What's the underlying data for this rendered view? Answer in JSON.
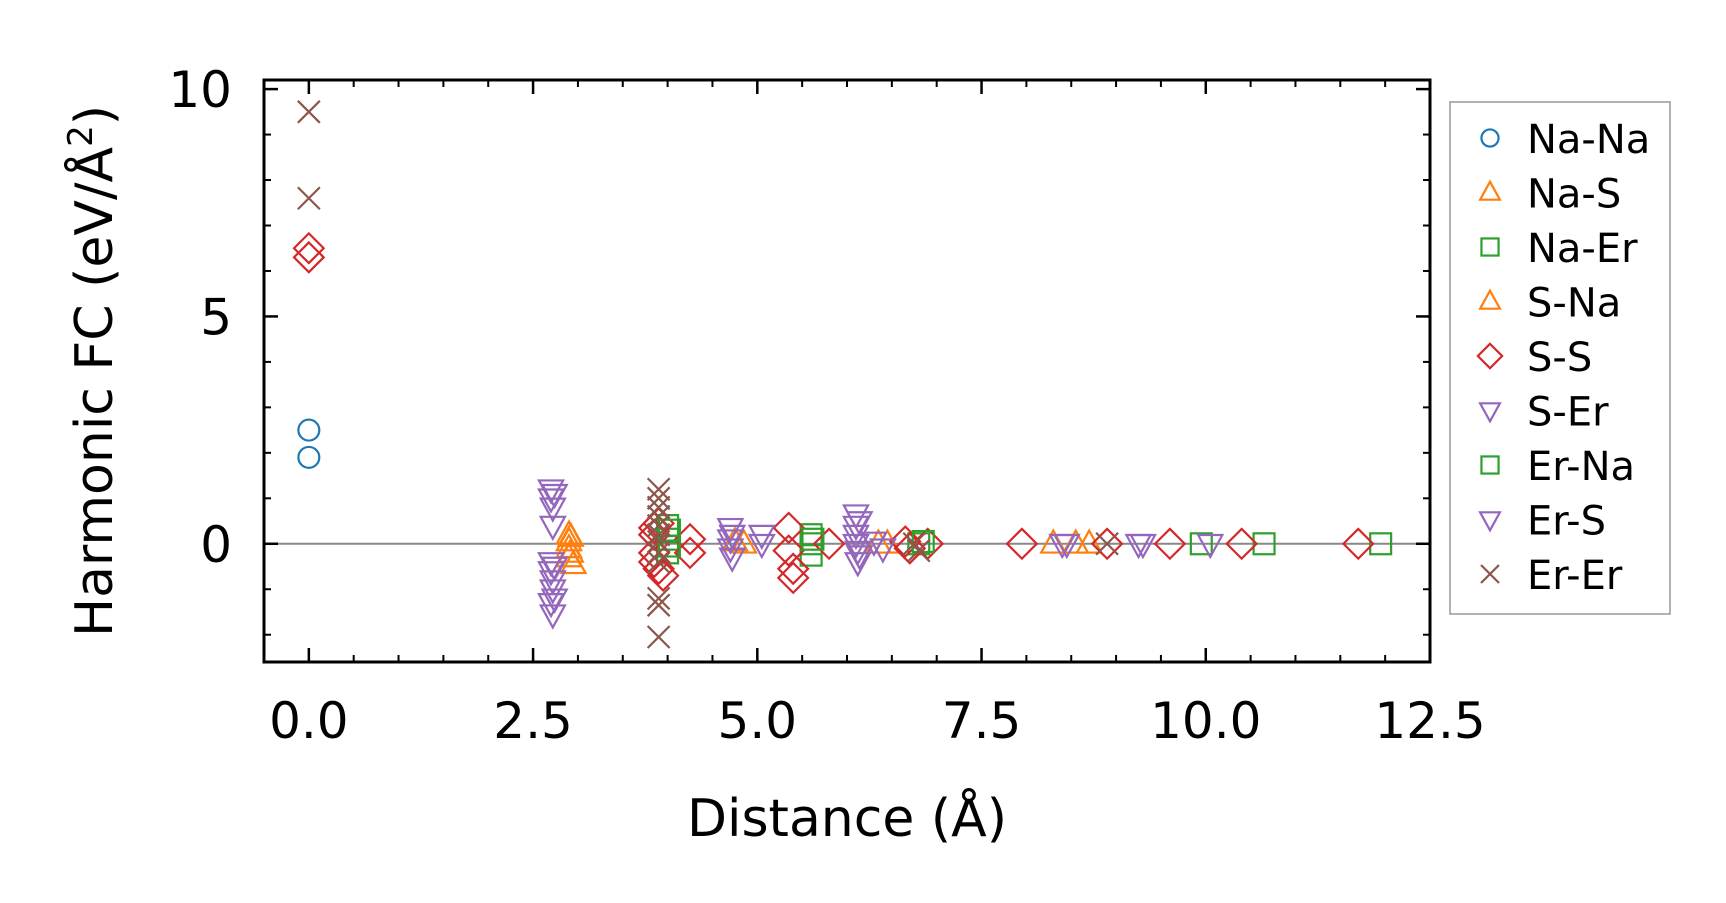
{
  "chart_data": {
    "type": "scatter",
    "title": "",
    "xlabel": "Distance (Å)",
    "ylabel": "Harmonic FC (eV/Å²)",
    "ylabel_parts": {
      "main": "Harmonic FC (eV/Å",
      "sup": "2",
      "end": ")"
    },
    "xlim": [
      -0.5,
      12.5
    ],
    "ylim": [
      -2.6,
      10.2
    ],
    "xticks": [
      0.0,
      2.5,
      5.0,
      7.5,
      10.0,
      12.5
    ],
    "xtick_labels": [
      "0.0",
      "2.5",
      "5.0",
      "7.5",
      "10.0",
      "12.5"
    ],
    "yticks": [
      0,
      5,
      10
    ],
    "ytick_labels": [
      "0",
      "5",
      "10"
    ],
    "zero_line": true,
    "legend_position": "right",
    "series": [
      {
        "name": "Na-Na",
        "marker": "circle",
        "color": "#1f77b4",
        "points": [
          [
            0,
            2.5
          ],
          [
            0,
            1.9
          ]
        ]
      },
      {
        "name": "Na-S",
        "marker": "triangle-up",
        "color": "#ff7f0e",
        "points": [
          [
            2.9,
            0.2
          ],
          [
            2.9,
            0.05
          ],
          [
            2.9,
            -0.1
          ],
          [
            2.9,
            -0.3
          ],
          [
            2.95,
            -0.45
          ],
          [
            4.85,
            0.0
          ],
          [
            6.45,
            0.0
          ],
          [
            8.3,
            0.0
          ],
          [
            8.7,
            0.0
          ]
        ]
      },
      {
        "name": "Na-Er",
        "marker": "square",
        "color": "#2ca02c",
        "points": [
          [
            4.0,
            0.4
          ],
          [
            4.0,
            0.1
          ],
          [
            4.0,
            -0.2
          ],
          [
            5.6,
            0.2
          ],
          [
            5.6,
            0.0
          ],
          [
            5.6,
            -0.25
          ],
          [
            6.8,
            0.0
          ],
          [
            9.95,
            0.0
          ],
          [
            10.65,
            0.0
          ],
          [
            11.95,
            0.0
          ]
        ]
      },
      {
        "name": "S-Na",
        "marker": "triangle-up",
        "color": "#ff7f0e",
        "points": [
          [
            2.92,
            0.15
          ],
          [
            2.92,
            -0.2
          ],
          [
            4.75,
            0.05
          ],
          [
            6.35,
            0.0
          ],
          [
            8.55,
            0.0
          ]
        ]
      },
      {
        "name": "S-S",
        "marker": "diamond",
        "color": "#d62728",
        "points": [
          [
            0,
            6.5
          ],
          [
            0,
            6.3
          ],
          [
            3.85,
            0.35
          ],
          [
            3.85,
            0.2
          ],
          [
            3.85,
            -0.2
          ],
          [
            3.85,
            -0.4
          ],
          [
            3.9,
            0.45
          ],
          [
            3.9,
            -0.55
          ],
          [
            3.95,
            -0.7
          ],
          [
            4.25,
            0.1
          ],
          [
            4.25,
            -0.2
          ],
          [
            5.35,
            0.35
          ],
          [
            5.35,
            -0.15
          ],
          [
            5.4,
            -0.55
          ],
          [
            5.4,
            -0.75
          ],
          [
            5.8,
            0.0
          ],
          [
            6.65,
            0.05
          ],
          [
            6.7,
            -0.1
          ],
          [
            6.9,
            0.0
          ],
          [
            7.95,
            0.0
          ],
          [
            8.9,
            0.0
          ],
          [
            9.6,
            0.0
          ],
          [
            10.4,
            0.0
          ],
          [
            11.7,
            0.0
          ]
        ]
      },
      {
        "name": "S-Er",
        "marker": "triangle-down",
        "color": "#9467bd",
        "points": [
          [
            2.7,
            1.2
          ],
          [
            2.7,
            1.0
          ],
          [
            2.72,
            0.8
          ],
          [
            2.72,
            0.4
          ],
          [
            2.7,
            -0.4
          ],
          [
            2.7,
            -0.6
          ],
          [
            2.72,
            -0.8
          ],
          [
            2.72,
            -1.0
          ],
          [
            2.7,
            -1.3
          ],
          [
            2.72,
            -1.55
          ],
          [
            4.7,
            0.35
          ],
          [
            4.7,
            0.1
          ],
          [
            4.7,
            -0.1
          ],
          [
            4.72,
            -0.3
          ],
          [
            5.05,
            0.2
          ],
          [
            5.05,
            0.0
          ],
          [
            6.1,
            0.65
          ],
          [
            6.1,
            0.4
          ],
          [
            6.1,
            0.2
          ],
          [
            6.1,
            0.0
          ],
          [
            6.12,
            -0.15
          ],
          [
            6.12,
            -0.4
          ],
          [
            6.3,
            0.05
          ],
          [
            6.4,
            -0.1
          ],
          [
            8.4,
            0.0
          ],
          [
            9.25,
            0.0
          ],
          [
            10.05,
            0.0
          ]
        ]
      },
      {
        "name": "Er-Na",
        "marker": "square",
        "color": "#2ca02c",
        "points": [
          [
            4.02,
            0.3
          ],
          [
            4.02,
            -0.05
          ],
          [
            5.62,
            0.1
          ],
          [
            6.85,
            0.05
          ]
        ]
      },
      {
        "name": "Er-S",
        "marker": "triangle-down",
        "color": "#9467bd",
        "points": [
          [
            2.74,
            1.1
          ],
          [
            2.74,
            -0.5
          ],
          [
            2.74,
            -1.2
          ],
          [
            4.72,
            0.2
          ],
          [
            6.14,
            0.5
          ],
          [
            6.14,
            -0.25
          ],
          [
            8.45,
            0.0
          ],
          [
            9.3,
            0.0
          ]
        ]
      },
      {
        "name": "Er-Er",
        "marker": "x",
        "color": "#8c564b",
        "points": [
          [
            0,
            9.5
          ],
          [
            0,
            7.6
          ],
          [
            3.9,
            1.2
          ],
          [
            3.9,
            1.0
          ],
          [
            3.9,
            0.8
          ],
          [
            3.9,
            0.6
          ],
          [
            3.9,
            0.4
          ],
          [
            3.9,
            0.2
          ],
          [
            3.9,
            0.05
          ],
          [
            3.9,
            -0.2
          ],
          [
            3.9,
            -0.4
          ],
          [
            3.9,
            -1.2
          ],
          [
            3.9,
            -1.35
          ],
          [
            3.9,
            -2.05
          ],
          [
            6.75,
            0.0
          ],
          [
            6.8,
            -0.15
          ],
          [
            8.9,
            0.0
          ]
        ]
      }
    ]
  }
}
